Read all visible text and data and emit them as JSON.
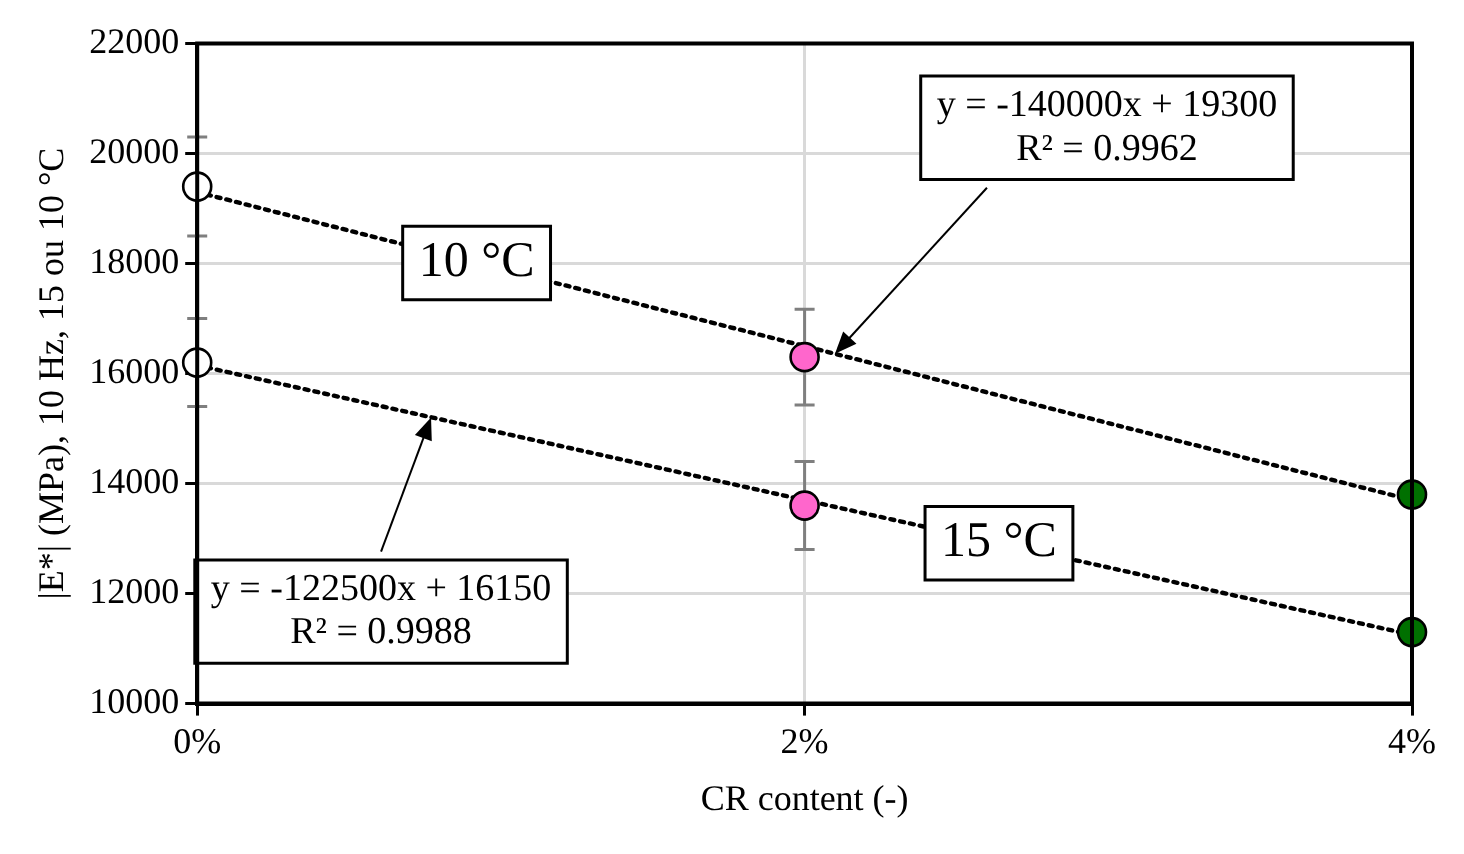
{
  "chart_data": {
    "type": "scatter",
    "xlabel": "CR content (-)",
    "ylabel": "|E*| (MPa), 10 Hz, 15 ou 10 °C",
    "xlim": [
      0,
      0.04
    ],
    "xticks": [
      {
        "value": 0,
        "label": "0%"
      },
      {
        "value": 0.02,
        "label": "2%"
      },
      {
        "value": 0.04,
        "label": "4%"
      }
    ],
    "ylim": [
      10000,
      22000
    ],
    "yticks": [
      10000,
      12000,
      14000,
      16000,
      18000,
      20000,
      22000
    ],
    "grid": true,
    "legend": false,
    "marker": "circle",
    "series": [
      {
        "x": [
          0,
          0.02,
          0.04
        ],
        "values": [
          19400,
          16300,
          13800
        ],
        "colors": [
          "#ffffff",
          "#ff66cc",
          "#007000"
        ],
        "errors": [
          900,
          870,
          null
        ]
      },
      {
        "x": [
          0,
          0.02,
          0.04
        ],
        "values": [
          16200,
          13600,
          11300
        ],
        "colors": [
          "#ffffff",
          "#ff66cc",
          "#007000"
        ],
        "errors": [
          800,
          800,
          null
        ]
      },
      {
        "name": "10 °C",
        "type": "line",
        "x": [
          0,
          0.04
        ],
        "values": [
          19300,
          13700
        ],
        "color": "#000000",
        "line_style": "dotted",
        "marker": "none"
      },
      {
        "name": "15 °C",
        "type": "line",
        "x": [
          0,
          0.04
        ],
        "values": [
          16150,
          11250
        ],
        "color": "#000000",
        "line_style": "dotted",
        "marker": "none"
      }
    ],
    "annotations": [
      {
        "text": "y = -140000x + 19300\nR² = 0.9962",
        "x": 0.021,
        "y": 16360
      },
      {
        "text": "y = -122500x + 16150\nR² = 0.9988",
        "x": 0.0077,
        "y": 15200
      }
    ]
  }
}
